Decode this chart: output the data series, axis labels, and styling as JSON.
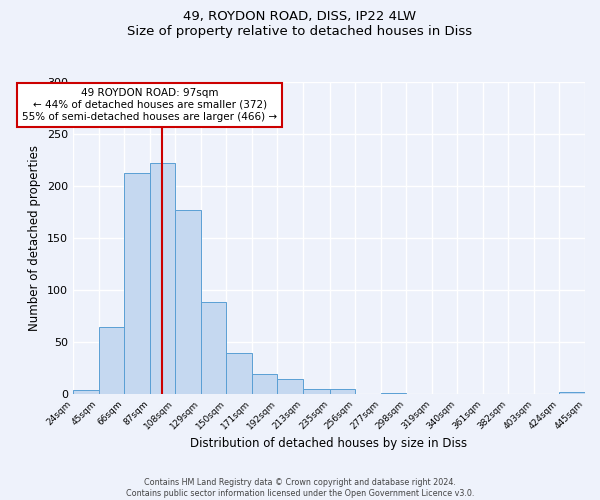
{
  "title": "49, ROYDON ROAD, DISS, IP22 4LW",
  "subtitle": "Size of property relative to detached houses in Diss",
  "xlabel": "Distribution of detached houses by size in Diss",
  "ylabel": "Number of detached properties",
  "bar_edges": [
    24,
    45,
    66,
    87,
    108,
    129,
    150,
    171,
    192,
    213,
    235,
    256,
    277,
    298,
    319,
    340,
    361,
    382,
    403,
    424,
    445
  ],
  "bar_heights": [
    4,
    65,
    213,
    222,
    177,
    89,
    40,
    20,
    15,
    5,
    5,
    0,
    1,
    0,
    0,
    0,
    0,
    0,
    0,
    2
  ],
  "bar_color": "#c5d8f0",
  "bar_edge_color": "#5a9fd4",
  "property_line_x": 97,
  "property_line_color": "#cc0000",
  "annotation_title": "49 ROYDON ROAD: 97sqm",
  "annotation_line1": "← 44% of detached houses are smaller (372)",
  "annotation_line2": "55% of semi-detached houses are larger (466) →",
  "annotation_box_facecolor": "#ffffff",
  "annotation_box_edgecolor": "#cc0000",
  "ylim": [
    0,
    300
  ],
  "yticks": [
    0,
    50,
    100,
    150,
    200,
    250,
    300
  ],
  "background_color": "#eef2fb",
  "grid_color": "#ffffff",
  "footer1": "Contains HM Land Registry data © Crown copyright and database right 2024.",
  "footer2": "Contains public sector information licensed under the Open Government Licence v3.0.",
  "tick_labels": [
    "24sqm",
    "45sqm",
    "66sqm",
    "87sqm",
    "108sqm",
    "129sqm",
    "150sqm",
    "171sqm",
    "192sqm",
    "213sqm",
    "235sqm",
    "256sqm",
    "277sqm",
    "298sqm",
    "319sqm",
    "340sqm",
    "361sqm",
    "382sqm",
    "403sqm",
    "424sqm",
    "445sqm"
  ]
}
